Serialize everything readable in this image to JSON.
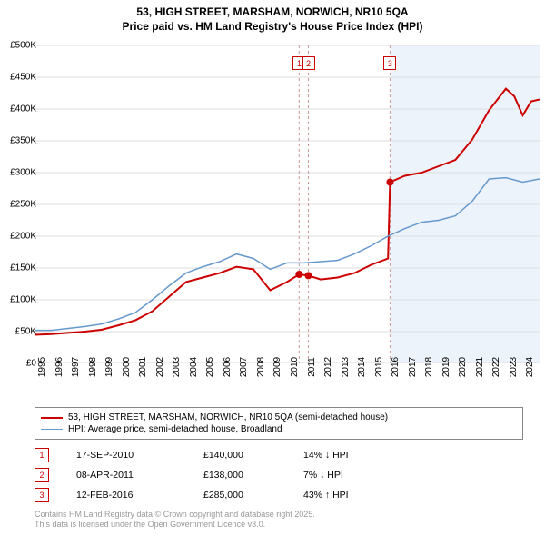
{
  "title_line1": "53, HIGH STREET, MARSHAM, NORWICH, NR10 5QA",
  "title_line2": "Price paid vs. HM Land Registry's House Price Index (HPI)",
  "chart": {
    "type": "line",
    "background_color": "#ffffff",
    "shaded_region": {
      "from_year": 2016.12,
      "to_year": 2025,
      "fill": "#edf3fb"
    },
    "grid_color": "#dddddd",
    "xlim": [
      1995,
      2025
    ],
    "ylim": [
      0,
      500000
    ],
    "ytick_step": 50000,
    "yticks": [
      "£0",
      "£50K",
      "£100K",
      "£150K",
      "£200K",
      "£250K",
      "£300K",
      "£350K",
      "£400K",
      "£450K",
      "£500K"
    ],
    "xticks": [
      "1995",
      "1996",
      "1997",
      "1998",
      "1999",
      "2000",
      "2001",
      "2002",
      "2003",
      "2004",
      "2005",
      "2006",
      "2007",
      "2008",
      "2009",
      "2010",
      "2011",
      "2012",
      "2013",
      "2014",
      "2015",
      "2016",
      "2017",
      "2018",
      "2019",
      "2020",
      "2021",
      "2022",
      "2023",
      "2024"
    ],
    "label_fontsize": 10,
    "series": [
      {
        "name": "price_paid",
        "color": "#cc0000",
        "width": 2,
        "points": [
          [
            1995,
            45000
          ],
          [
            1996,
            46000
          ],
          [
            1997,
            48000
          ],
          [
            1998,
            50000
          ],
          [
            1999,
            53000
          ],
          [
            2000,
            60000
          ],
          [
            2001,
            68000
          ],
          [
            2002,
            82000
          ],
          [
            2003,
            105000
          ],
          [
            2004,
            128000
          ],
          [
            2005,
            135000
          ],
          [
            2006,
            142000
          ],
          [
            2007,
            152000
          ],
          [
            2008,
            148000
          ],
          [
            2009,
            115000
          ],
          [
            2010,
            128000
          ],
          [
            2010.72,
            140000
          ],
          [
            2011.27,
            138000
          ],
          [
            2012,
            132000
          ],
          [
            2013,
            135000
          ],
          [
            2014,
            142000
          ],
          [
            2015,
            155000
          ],
          [
            2016,
            165000
          ],
          [
            2016.12,
            285000
          ],
          [
            2017,
            295000
          ],
          [
            2018,
            300000
          ],
          [
            2019,
            310000
          ],
          [
            2020,
            320000
          ],
          [
            2021,
            352000
          ],
          [
            2022,
            398000
          ],
          [
            2023,
            432000
          ],
          [
            2023.5,
            420000
          ],
          [
            2024,
            390000
          ],
          [
            2024.5,
            412000
          ],
          [
            2025,
            415000
          ]
        ]
      },
      {
        "name": "hpi",
        "color": "#6699cc",
        "width": 1.5,
        "points": [
          [
            1995,
            52000
          ],
          [
            1996,
            52000
          ],
          [
            1997,
            55000
          ],
          [
            1998,
            58000
          ],
          [
            1999,
            62000
          ],
          [
            2000,
            70000
          ],
          [
            2001,
            80000
          ],
          [
            2002,
            100000
          ],
          [
            2003,
            122000
          ],
          [
            2004,
            142000
          ],
          [
            2005,
            152000
          ],
          [
            2006,
            160000
          ],
          [
            2007,
            172000
          ],
          [
            2008,
            165000
          ],
          [
            2009,
            148000
          ],
          [
            2010,
            158000
          ],
          [
            2011,
            158000
          ],
          [
            2012,
            160000
          ],
          [
            2013,
            162000
          ],
          [
            2014,
            172000
          ],
          [
            2015,
            185000
          ],
          [
            2016,
            200000
          ],
          [
            2017,
            212000
          ],
          [
            2018,
            222000
          ],
          [
            2019,
            225000
          ],
          [
            2020,
            232000
          ],
          [
            2021,
            255000
          ],
          [
            2022,
            290000
          ],
          [
            2023,
            292000
          ],
          [
            2024,
            285000
          ],
          [
            2025,
            290000
          ]
        ]
      }
    ],
    "markers": [
      {
        "n": "1",
        "x": 2010.72,
        "y": 140000
      },
      {
        "n": "2",
        "x": 2011.27,
        "y": 138000
      },
      {
        "n": "3",
        "x": 2016.12,
        "y": 285000
      }
    ],
    "vlines_color": "#cc9999",
    "vlines_dash": "3,3"
  },
  "legend": {
    "items": [
      {
        "label": "53, HIGH STREET, MARSHAM, NORWICH, NR10 5QA (semi-detached house)",
        "color": "#cc0000",
        "width": 2
      },
      {
        "label": "HPI: Average price, semi-detached house, Broadland",
        "color": "#6699cc",
        "width": 1.5
      }
    ]
  },
  "events": [
    {
      "n": "1",
      "date": "17-SEP-2010",
      "price": "£140,000",
      "diff": "14% ↓ HPI"
    },
    {
      "n": "2",
      "date": "08-APR-2011",
      "price": "£138,000",
      "diff": "7% ↓ HPI"
    },
    {
      "n": "3",
      "date": "12-FEB-2016",
      "price": "£285,000",
      "diff": "43% ↑ HPI"
    }
  ],
  "footer_line1": "Contains HM Land Registry data © Crown copyright and database right 2025.",
  "footer_line2": "This data is licensed under the Open Government Licence v3.0."
}
